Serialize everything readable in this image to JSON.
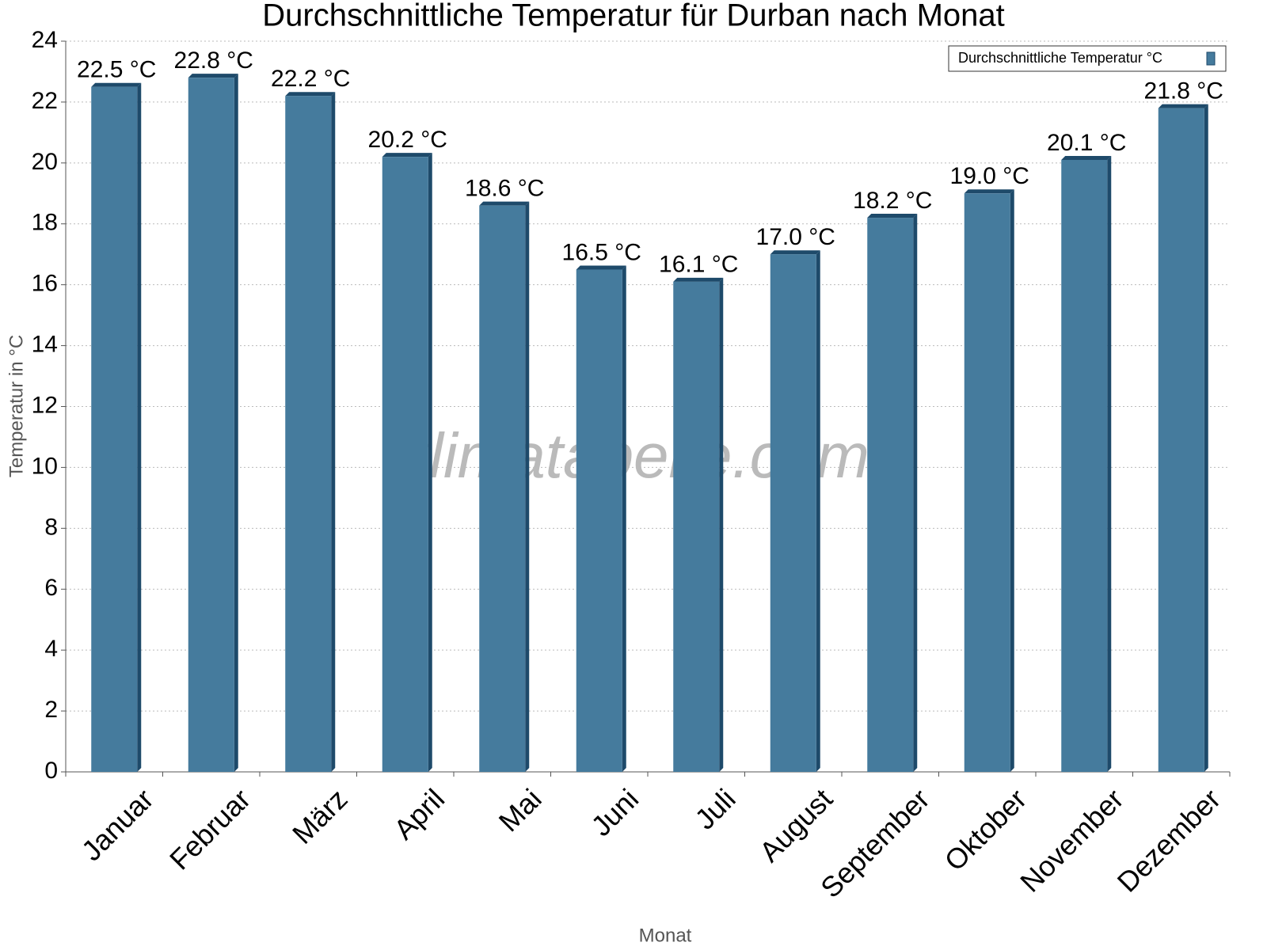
{
  "chart_data": {
    "type": "bar",
    "title": "Durchschnittliche Temperatur für Durban nach Monat",
    "xlabel": "Monat",
    "ylabel": "Temperatur in °C",
    "watermark": "klimatabelle.com",
    "categories": [
      "Januar",
      "Februar",
      "März",
      "April",
      "Mai",
      "Juni",
      "Juli",
      "August",
      "September",
      "Oktober",
      "November",
      "Dezember"
    ],
    "series": [
      {
        "name": "Durchschnittliche Temperatur °C",
        "color": "#457b9d",
        "values": [
          22.5,
          22.8,
          22.2,
          20.2,
          18.6,
          16.5,
          16.1,
          17.0,
          18.2,
          19.0,
          20.1,
          21.8
        ],
        "value_labels": [
          "22.5 °C",
          "22.8 °C",
          "22.2 °C",
          "20.2 °C",
          "18.6 °C",
          "16.5 °C",
          "16.1 °C",
          "17.0 °C",
          "18.2 °C",
          "19.0 °C",
          "20.1 °C",
          "21.8 °C"
        ]
      }
    ],
    "ylim": [
      0,
      24
    ],
    "yticks": [
      0,
      2,
      4,
      6,
      8,
      10,
      12,
      14,
      16,
      18,
      20,
      22,
      24
    ],
    "grid": true,
    "legend": "upper right"
  }
}
